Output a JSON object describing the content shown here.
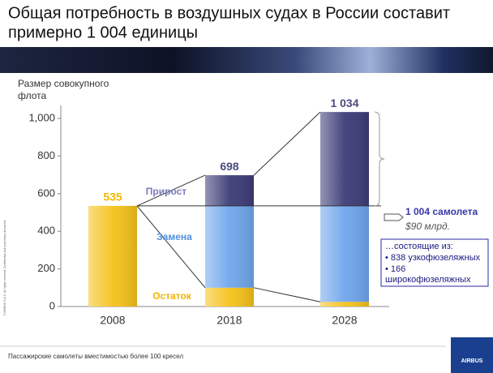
{
  "chart_data": {
    "type": "stacked-bar",
    "title": [
      "Общая потребность в воздушных судах в России составит",
      "примерно 1 004 единицы"
    ],
    "y_label": [
      "Размер совокупного",
      "флота"
    ],
    "categories": [
      "2008",
      "2018",
      "2028"
    ],
    "series": [
      {
        "name": "Остаток",
        "color": "#f5c21a",
        "values": [
          535,
          100,
          25
        ]
      },
      {
        "name": "Замена",
        "color": "#6fa6ec",
        "values": [
          null,
          435,
          510
        ]
      },
      {
        "name": "Прирост",
        "color": "#3c3c78",
        "values": [
          null,
          163,
          499
        ]
      }
    ],
    "totals": [
      535,
      698,
      1034
    ],
    "total_labels": [
      "535",
      "698",
      "1 034"
    ],
    "ylim": [
      0,
      1070
    ],
    "yticks": [
      0,
      200,
      400,
      600,
      800,
      {
        "value": 1000,
        "label": "1,000"
      }
    ],
    "callout": {
      "title": "1 004 самолета",
      "value": "$90 млрд.",
      "box": [
        "…состоящие из:",
        "• 838 узкофюзеляжных",
        "• 166",
        "широкофюзеляжных"
      ]
    },
    "footnote": "Пассажирские самолеты вместимостью более 100 кресел",
    "copyright": "© AIRBUS S.A.S. All rights reserved. Confidential and proprietary document.",
    "logo": "AIRBUS"
  }
}
